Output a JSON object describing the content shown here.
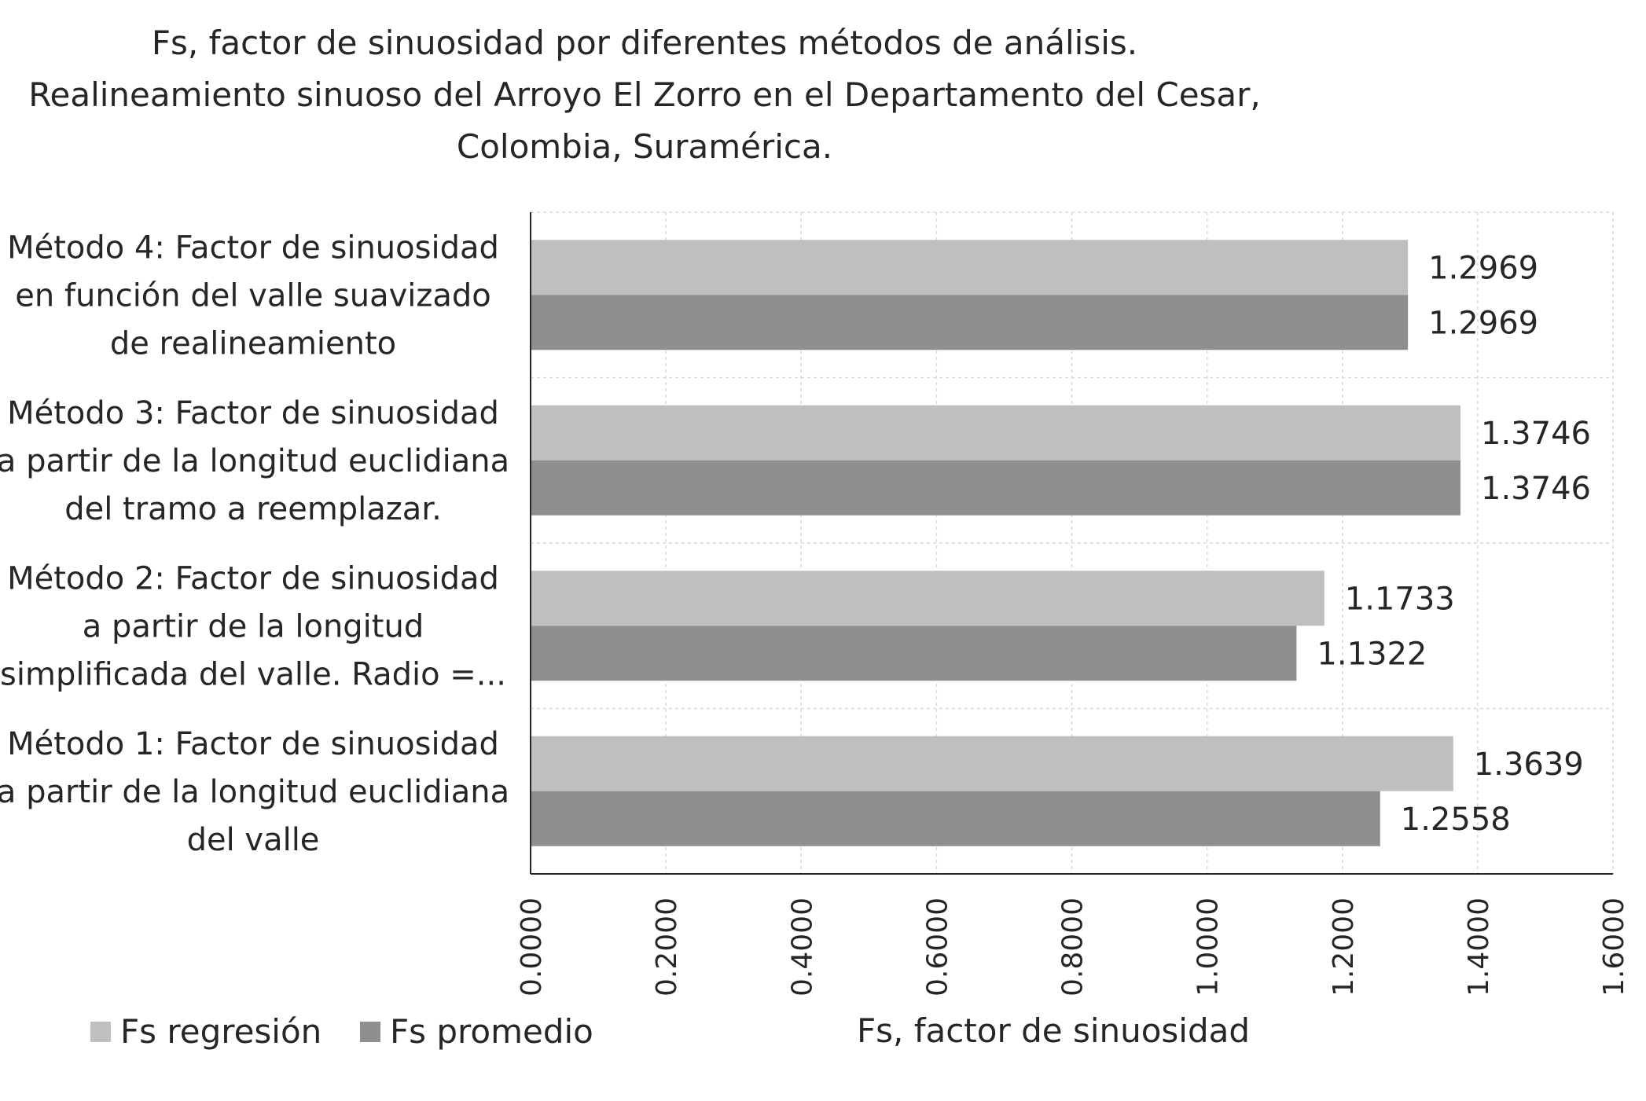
{
  "chart_data": {
    "type": "bar",
    "orientation": "horizontal",
    "title": [
      "Fs, factor de sinuosidad por diferentes métodos de análisis.",
      "Realineamiento sinuoso del Arroyo El Zorro en el Departamento del Cesar,",
      "Colombia, Suramérica."
    ],
    "categories": [
      [
        "Método 1: Factor de sinuosidad",
        "a partir de la longitud euclidiana",
        "del valle"
      ],
      [
        "Método 2: Factor de sinuosidad",
        "a partir de la longitud",
        "simplificada del valle. Radio =..."
      ],
      [
        "Método 3: Factor de sinuosidad",
        "a partir de la longitud euclidiana",
        "del tramo a reemplazar."
      ],
      [
        "Método 4: Factor de sinuosidad",
        "en función del valle suavizado",
        "de realineamiento"
      ]
    ],
    "series": [
      {
        "name": "Fs regresión",
        "color": "#bfbfbf",
        "values": [
          1.3639,
          1.1733,
          1.3746,
          1.2969
        ],
        "labels": [
          "1.3639",
          "1.1733",
          "1.3746",
          "1.2969"
        ]
      },
      {
        "name": "Fs promedio",
        "color": "#8f8f8f",
        "values": [
          1.2558,
          1.1322,
          1.3746,
          1.2969
        ],
        "labels": [
          "1.2558",
          "1.1322",
          "1.3746",
          "1.2969"
        ]
      }
    ],
    "xlabel": "Fs, factor de sinuosidad",
    "ylabel": "",
    "xlim": [
      0,
      1.6
    ],
    "ticks": [
      0,
      0.2,
      0.4,
      0.6,
      0.8,
      1.0,
      1.2,
      1.4,
      1.6
    ],
    "tick_labels": [
      "0.0000",
      "0.2000",
      "0.4000",
      "0.6000",
      "0.8000",
      "1.0000",
      "1.2000",
      "1.4000",
      "1.6000"
    ],
    "grid": "dashed vertical and horizontal",
    "legend_position": "bottom-left"
  }
}
